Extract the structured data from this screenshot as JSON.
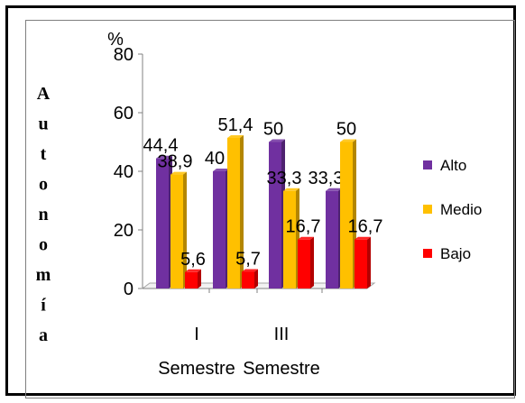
{
  "chart_data": {
    "type": "bar",
    "ylabel": "Autonomía",
    "yunit": "%",
    "ylim": [
      0,
      80
    ],
    "yticks": [
      "0",
      "20",
      "40",
      "60",
      "80"
    ],
    "categories": [
      "I\nSemestre",
      "III\nSemestre"
    ],
    "category_labels": [
      {
        "line1": "I",
        "line2": "Semestre"
      },
      {
        "line1": "III",
        "line2": "Semestre"
      }
    ],
    "groups": [
      {
        "name": "I",
        "bars": [
          {
            "series": "Alto",
            "value": 44.4,
            "label": "44,4"
          },
          {
            "series": "Medio",
            "value": 38.9,
            "label": "38,9"
          },
          {
            "series": "Bajo",
            "value": 5.6,
            "label": "5,6"
          }
        ]
      },
      {
        "name": "",
        "bars": [
          {
            "series": "Alto",
            "value": 40,
            "label": "40"
          },
          {
            "series": "Medio",
            "value": 51.4,
            "label": "51,4"
          },
          {
            "series": "Bajo",
            "value": 5.7,
            "label": "5,7"
          }
        ]
      },
      {
        "name": "III",
        "bars": [
          {
            "series": "Alto",
            "value": 50,
            "label": "50"
          },
          {
            "series": "Medio",
            "value": 33.3,
            "label": "33,3"
          },
          {
            "series": "Bajo",
            "value": 16.7,
            "label": "16,7"
          }
        ]
      },
      {
        "name": "",
        "bars": [
          {
            "series": "Alto",
            "value": 33.3,
            "label": "33,3"
          },
          {
            "series": "Medio",
            "value": 50,
            "label": "50"
          },
          {
            "series": "Bajo",
            "value": 16.7,
            "label": "16,7"
          }
        ]
      }
    ],
    "series": [
      {
        "name": "Alto",
        "color": "#7030a0"
      },
      {
        "name": "Medio",
        "color": "#ffc000"
      },
      {
        "name": "Bajo",
        "color": "#ff0000"
      }
    ],
    "legend_position": "right",
    "grid": false
  }
}
